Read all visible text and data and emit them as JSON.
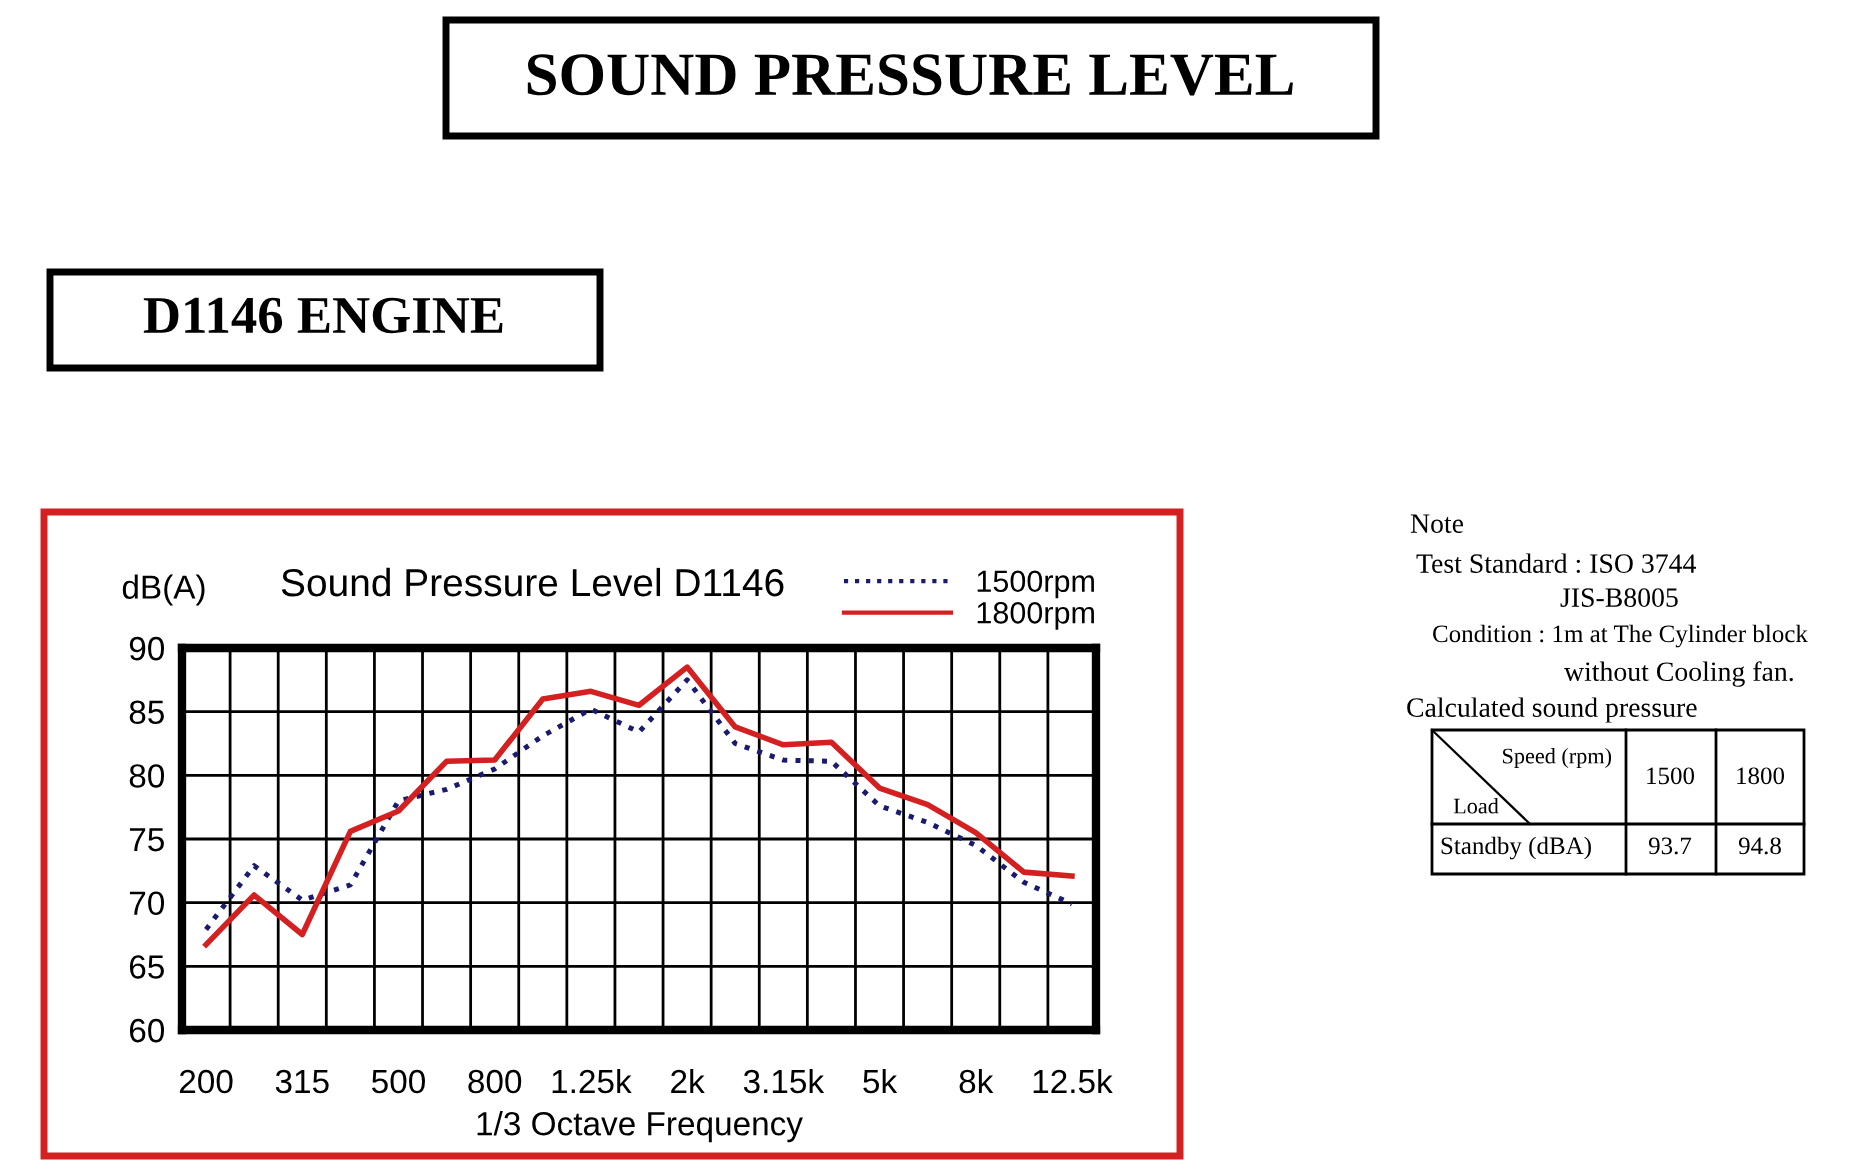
{
  "chart_data": {
    "type": "line",
    "title": "SOUND PRESSURE LEVEL",
    "subtitle": "D1146 ENGINE",
    "ylabel": "dB(A)",
    "xlabel": "1/3 Octave Frequency",
    "annotations": [
      "Sound Pressure Level D1146",
      "Note",
      "Test Standard : ISO 3744",
      "JIS-B8005",
      "Condition : 1m at The Cylinder block",
      "without Cooling fan.",
      "Calculated sound pressure",
      "Speed (rpm)",
      "Load",
      "1500",
      "1800",
      "Standby (dBA)",
      "93.7",
      "94.8"
    ],
    "categories": [
      "200",
      null,
      "315",
      null,
      "500",
      null,
      "800",
      null,
      "1.25k",
      null,
      "2k",
      null,
      "3.15k",
      null,
      "5k",
      null,
      "8k",
      null,
      "12.5k"
    ],
    "series": [
      {
        "name": "1500rpm",
        "color": "#1a1a6e",
        "line_style": "dotted",
        "values": [
          67.9,
          72.9,
          70.2,
          71.4,
          78.0,
          78.9,
          80.5,
          83.1,
          85.2,
          83.4,
          87.5,
          82.5,
          81.2,
          81.1,
          77.6,
          76.3,
          74.5,
          71.6,
          69.9
        ]
      },
      {
        "name": "1800rpm",
        "color": "#d42020",
        "line_style": "solid",
        "values": [
          66.7,
          70.6,
          67.5,
          75.6,
          77.2,
          81.1,
          81.2,
          86.0,
          86.6,
          85.5,
          88.5,
          83.8,
          82.4,
          82.6,
          79.0,
          77.7,
          75.5,
          72.4,
          72.1
        ]
      }
    ],
    "ylim": [
      60,
      90
    ],
    "yticks": [
      60,
      65,
      70,
      75,
      80,
      85,
      90
    ],
    "grid": true,
    "legend": "top right",
    "marker": "none"
  }
}
